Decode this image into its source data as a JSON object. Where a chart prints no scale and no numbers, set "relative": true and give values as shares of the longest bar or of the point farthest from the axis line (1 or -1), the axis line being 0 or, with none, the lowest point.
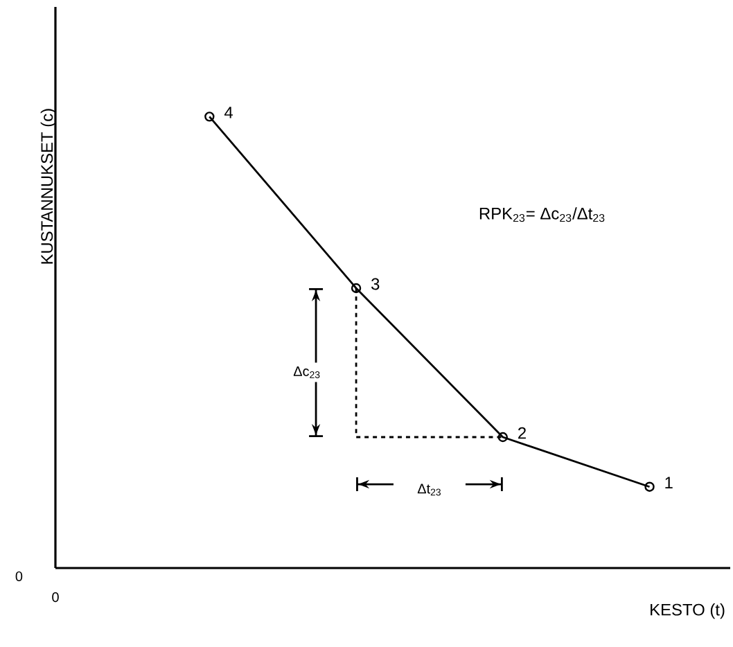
{
  "chart_data": {
    "type": "line",
    "relative": true,
    "xlabel": "KESTO (t)",
    "ylabel": "KUSTANNUKSET (c)",
    "categories": [
      null,
      null,
      null,
      null
    ],
    "series": [
      {
        "values": [
          1.0,
          0.62,
          0.29,
          0.18
        ],
        "color": "#000000"
      }
    ],
    "marker": "circle",
    "line_style": "solid",
    "annotations": [
      "4",
      "3",
      "2",
      "1",
      "RPK$_{23}$= Δc$_{23}$/Δt$_{23}$",
      "Δc$_{23}$",
      "Δt$_{23}$",
      "0",
      "0"
    ]
  }
}
